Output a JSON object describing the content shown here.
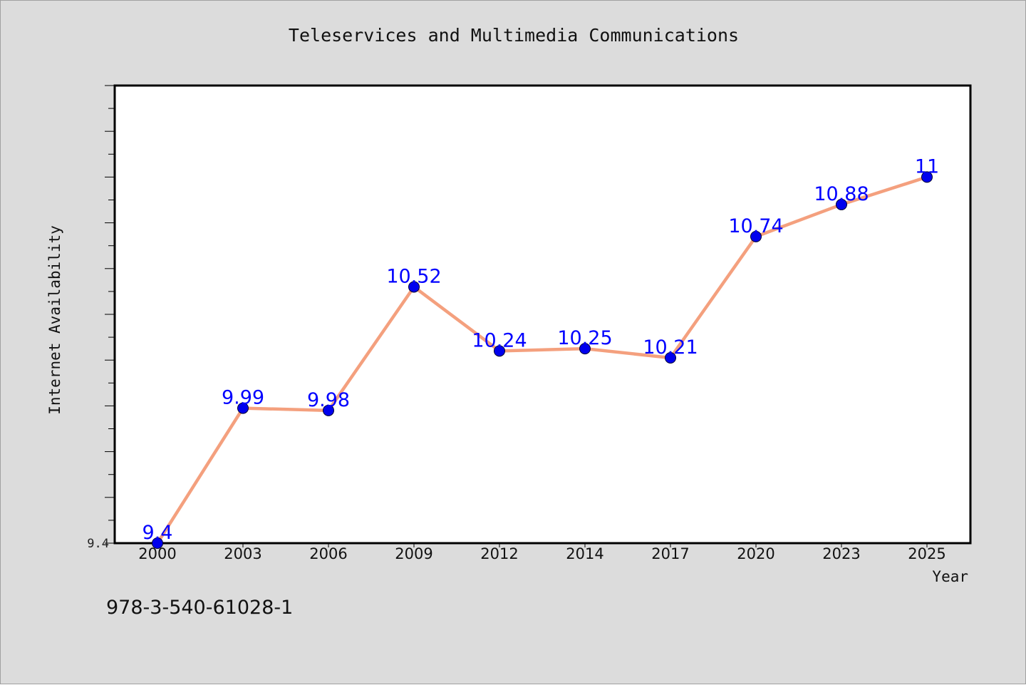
{
  "chart_data": {
    "type": "line",
    "title": "Teleservices and Multimedia Communications",
    "xlabel": "Year",
    "ylabel": "Internet Availability",
    "categories": [
      "2000",
      "2003",
      "2006",
      "2009",
      "2012",
      "2014",
      "2017",
      "2020",
      "2023",
      "2025"
    ],
    "series": [
      {
        "values": [
          9.4,
          9.99,
          9.98,
          10.52,
          10.24,
          10.25,
          10.21,
          10.74,
          10.88,
          11
        ],
        "data_labels": [
          "9.4",
          "9.99",
          "9.98",
          "10.52",
          "10.24",
          "10.25",
          "10.21",
          "10.74",
          "10.88",
          "11"
        ]
      }
    ],
    "ylim": [
      9.4,
      11.4
    ],
    "y_tick_labels": [
      "9.4"
    ],
    "grid": false,
    "colors": {
      "line": "#f4a07e",
      "marker": "#0000ee",
      "label": "#0000ff"
    }
  },
  "footer": {
    "text": "978-3-540-61028-1"
  }
}
